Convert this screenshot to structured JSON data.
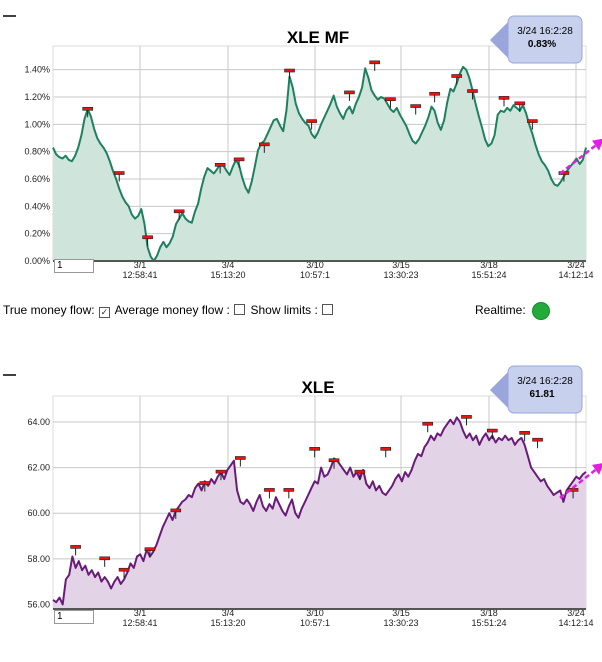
{
  "chart_data": [
    {
      "type": "area",
      "title": "XLE MF",
      "y_unit": "%",
      "ylim": [
        0,
        1.5
      ],
      "yticks": [
        "1.40%",
        "1.20%",
        "1.00%",
        "0.80%",
        "0.60%",
        "0.40%",
        "0.20%",
        "0.00%"
      ],
      "ytick_values": [
        1.4,
        1.2,
        1.0,
        0.8,
        0.6,
        0.4,
        0.2,
        0.0
      ],
      "xticks": [
        {
          "date": "3/1",
          "time": "12:58:41"
        },
        {
          "date": "3/4",
          "time": "15:13:20"
        },
        {
          "date": "3/10",
          "time": "10:57:1"
        },
        {
          "date": "3/15",
          "time": "13:30:23"
        },
        {
          "date": "3/18",
          "time": "15:51:24"
        },
        {
          "date": "3/24",
          "time": "14:12:14"
        }
      ],
      "color": "#1e8060",
      "fill": "#cfe4db",
      "grid": true,
      "tooltip": {
        "time": "3/24 16:2:28",
        "value": "0.83%"
      },
      "input_value": "1",
      "series": [
        {
          "values": [
            0.83,
            0.78,
            0.76,
            0.75,
            0.77,
            0.74,
            0.73,
            0.77,
            0.83,
            0.92,
            1.04,
            1.11,
            1.06,
            0.97,
            0.9,
            0.86,
            0.83,
            0.79,
            0.73,
            0.66,
            0.6,
            0.53,
            0.47,
            0.43,
            0.4,
            0.34,
            0.31,
            0.33,
            0.38,
            0.27,
            0.1,
            0.03,
            0.0,
            0.04,
            0.1,
            0.14,
            0.1,
            0.13,
            0.18,
            0.27,
            0.31,
            0.35,
            0.31,
            0.29,
            0.28,
            0.36,
            0.42,
            0.53,
            0.62,
            0.68,
            0.66,
            0.64,
            0.67,
            0.71,
            0.7,
            0.66,
            0.63,
            0.69,
            0.74,
            0.7,
            0.61,
            0.54,
            0.5,
            0.58,
            0.69,
            0.81,
            0.86,
            0.88,
            0.93,
            0.98,
            1.03,
            1.04,
            0.99,
            0.95,
            1.1,
            1.35,
            1.27,
            1.15,
            1.08,
            1.04,
            1.01,
            0.99,
            0.93,
            0.9,
            0.94,
            1.0,
            1.05,
            1.1,
            1.15,
            1.21,
            1.13,
            1.08,
            1.04,
            1.1,
            1.13,
            1.08,
            1.15,
            1.2,
            1.27,
            1.41,
            1.34,
            1.25,
            1.21,
            1.18,
            1.2,
            1.19,
            1.15,
            1.11,
            1.09,
            1.12,
            1.07,
            1.03,
            0.99,
            0.93,
            0.88,
            0.86,
            0.89,
            0.94,
            0.99,
            1.05,
            1.13,
            1.1,
            1.01,
            0.96,
            1.03,
            1.16,
            1.26,
            1.24,
            1.3,
            1.37,
            1.42,
            1.4,
            1.34,
            1.25,
            1.15,
            1.06,
            0.98,
            0.89,
            0.84,
            0.86,
            0.92,
            1.07,
            1.1,
            1.09,
            1.12,
            1.1,
            1.14,
            1.12,
            1.1,
            1.14,
            1.08,
            1.0,
            0.93,
            0.85,
            0.78,
            0.73,
            0.7,
            0.66,
            0.6,
            0.56,
            0.55,
            0.58,
            0.62,
            0.66,
            0.69,
            0.72,
            0.75,
            0.71,
            0.74,
            0.83
          ]
        }
      ],
      "markers": [
        {
          "i": 11,
          "v": 1.11
        },
        {
          "i": 21,
          "v": 0.64
        },
        {
          "i": 30,
          "v": 0.17
        },
        {
          "i": 40,
          "v": 0.36
        },
        {
          "i": 53,
          "v": 0.7
        },
        {
          "i": 59,
          "v": 0.74
        },
        {
          "i": 67,
          "v": 0.85
        },
        {
          "i": 75,
          "v": 1.39
        },
        {
          "i": 82,
          "v": 1.02
        },
        {
          "i": 94,
          "v": 1.23
        },
        {
          "i": 102,
          "v": 1.45
        },
        {
          "i": 107,
          "v": 1.18
        },
        {
          "i": 115,
          "v": 1.13
        },
        {
          "i": 121,
          "v": 1.22
        },
        {
          "i": 128,
          "v": 1.35
        },
        {
          "i": 133,
          "v": 1.24
        },
        {
          "i": 143,
          "v": 1.19
        },
        {
          "i": 148,
          "v": 1.15
        },
        {
          "i": 152,
          "v": 1.02
        },
        {
          "i": 162,
          "v": 0.64
        }
      ]
    },
    {
      "type": "area",
      "title": "XLE",
      "ylim": [
        55.8,
        64.7
      ],
      "yticks": [
        "64.00",
        "62.00",
        "60.00",
        "58.00",
        "56.00"
      ],
      "ytick_values": [
        64,
        62,
        60,
        58,
        56
      ],
      "xticks": [
        {
          "date": "3/1",
          "time": "12:58:41"
        },
        {
          "date": "3/4",
          "time": "15:13:20"
        },
        {
          "date": "3/10",
          "time": "10:57:1"
        },
        {
          "date": "3/15",
          "time": "13:30:23"
        },
        {
          "date": "3/18",
          "time": "15:51:24"
        },
        {
          "date": "3/24",
          "time": "14:12:14"
        }
      ],
      "color": "#6a1b7a",
      "fill": "#e2d3e6",
      "grid": true,
      "tooltip": {
        "time": "3/24 16:2:28",
        "value": "61.81"
      },
      "input_value": "1",
      "series": [
        {
          "values": [
            56.2,
            56.1,
            56.3,
            56.0,
            57.1,
            57.3,
            58.1,
            57.6,
            57.9,
            57.5,
            57.7,
            57.3,
            57.5,
            57.2,
            57.4,
            57.0,
            57.2,
            57.0,
            56.7,
            57.0,
            57.2,
            56.9,
            57.1,
            57.4,
            57.8,
            57.6,
            58.1,
            58.2,
            57.9,
            58.4,
            58.1,
            58.3,
            58.6,
            59.0,
            59.4,
            59.7,
            60.0,
            59.7,
            60.1,
            60.3,
            60.5,
            60.6,
            60.8,
            60.7,
            61.1,
            61.3,
            61.0,
            61.4,
            61.2,
            61.5,
            61.3,
            61.6,
            61.8,
            61.5,
            61.9,
            62.1,
            62.3,
            61.0,
            60.5,
            60.4,
            60.6,
            60.4,
            60.1,
            60.5,
            60.8,
            60.3,
            60.1,
            60.4,
            60.2,
            60.7,
            60.4,
            60.1,
            59.9,
            60.3,
            60.6,
            60.0,
            59.8,
            60.2,
            60.5,
            60.8,
            61.1,
            61.4,
            61.3,
            62.0,
            61.6,
            61.7,
            62.0,
            62.4,
            62.3,
            62.1,
            61.9,
            61.7,
            62.0,
            61.6,
            61.8,
            61.5,
            61.9,
            61.3,
            61.1,
            61.4,
            61.0,
            61.2,
            60.9,
            60.8,
            61.0,
            61.2,
            61.5,
            61.7,
            61.4,
            61.8,
            61.6,
            61.9,
            62.3,
            62.6,
            62.5,
            62.9,
            63.1,
            63.4,
            63.2,
            63.5,
            63.4,
            63.7,
            63.9,
            64.1,
            63.9,
            64.2,
            64.0,
            63.6,
            63.3,
            63.5,
            63.2,
            63.4,
            63.0,
            63.3,
            63.5,
            63.2,
            63.4,
            63.1,
            63.3,
            63.2,
            63.4,
            63.2,
            63.3,
            63.0,
            63.2,
            63.3,
            63.0,
            62.5,
            62.0,
            61.8,
            61.6,
            61.4,
            61.5,
            61.2,
            61.0,
            60.8,
            60.9,
            61.0,
            60.5,
            61.0,
            61.2,
            61.4,
            61.6,
            61.5,
            61.7,
            61.81
          ]
        }
      ],
      "markers": [
        {
          "i": 7,
          "v": 58.5
        },
        {
          "i": 16,
          "v": 58.0
        },
        {
          "i": 22,
          "v": 57.5
        },
        {
          "i": 30,
          "v": 58.4
        },
        {
          "i": 38,
          "v": 60.1
        },
        {
          "i": 47,
          "v": 61.3
        },
        {
          "i": 52,
          "v": 61.8
        },
        {
          "i": 58,
          "v": 62.4
        },
        {
          "i": 67,
          "v": 61.0
        },
        {
          "i": 73,
          "v": 61.0
        },
        {
          "i": 81,
          "v": 62.8
        },
        {
          "i": 87,
          "v": 62.3
        },
        {
          "i": 95,
          "v": 61.8
        },
        {
          "i": 103,
          "v": 62.8
        },
        {
          "i": 116,
          "v": 63.9
        },
        {
          "i": 128,
          "v": 64.2
        },
        {
          "i": 136,
          "v": 63.6
        },
        {
          "i": 146,
          "v": 63.5
        },
        {
          "i": 150,
          "v": 63.2
        },
        {
          "i": 161,
          "v": 61.0
        }
      ]
    }
  ],
  "controls": {
    "true_mf_label": "True money flow:",
    "avg_mf_label": "Average money flow :",
    "show_limits_label": "Show limits :",
    "realtime_label": "Realtime:",
    "realtime_color": "#22aa3a"
  },
  "colors": {
    "grid": "#c8c8c8",
    "marker": "#e11",
    "tooltip_fill": "#c7d0ec",
    "tooltip_arrow": "#9aa6db",
    "projection": "#e020e0"
  }
}
